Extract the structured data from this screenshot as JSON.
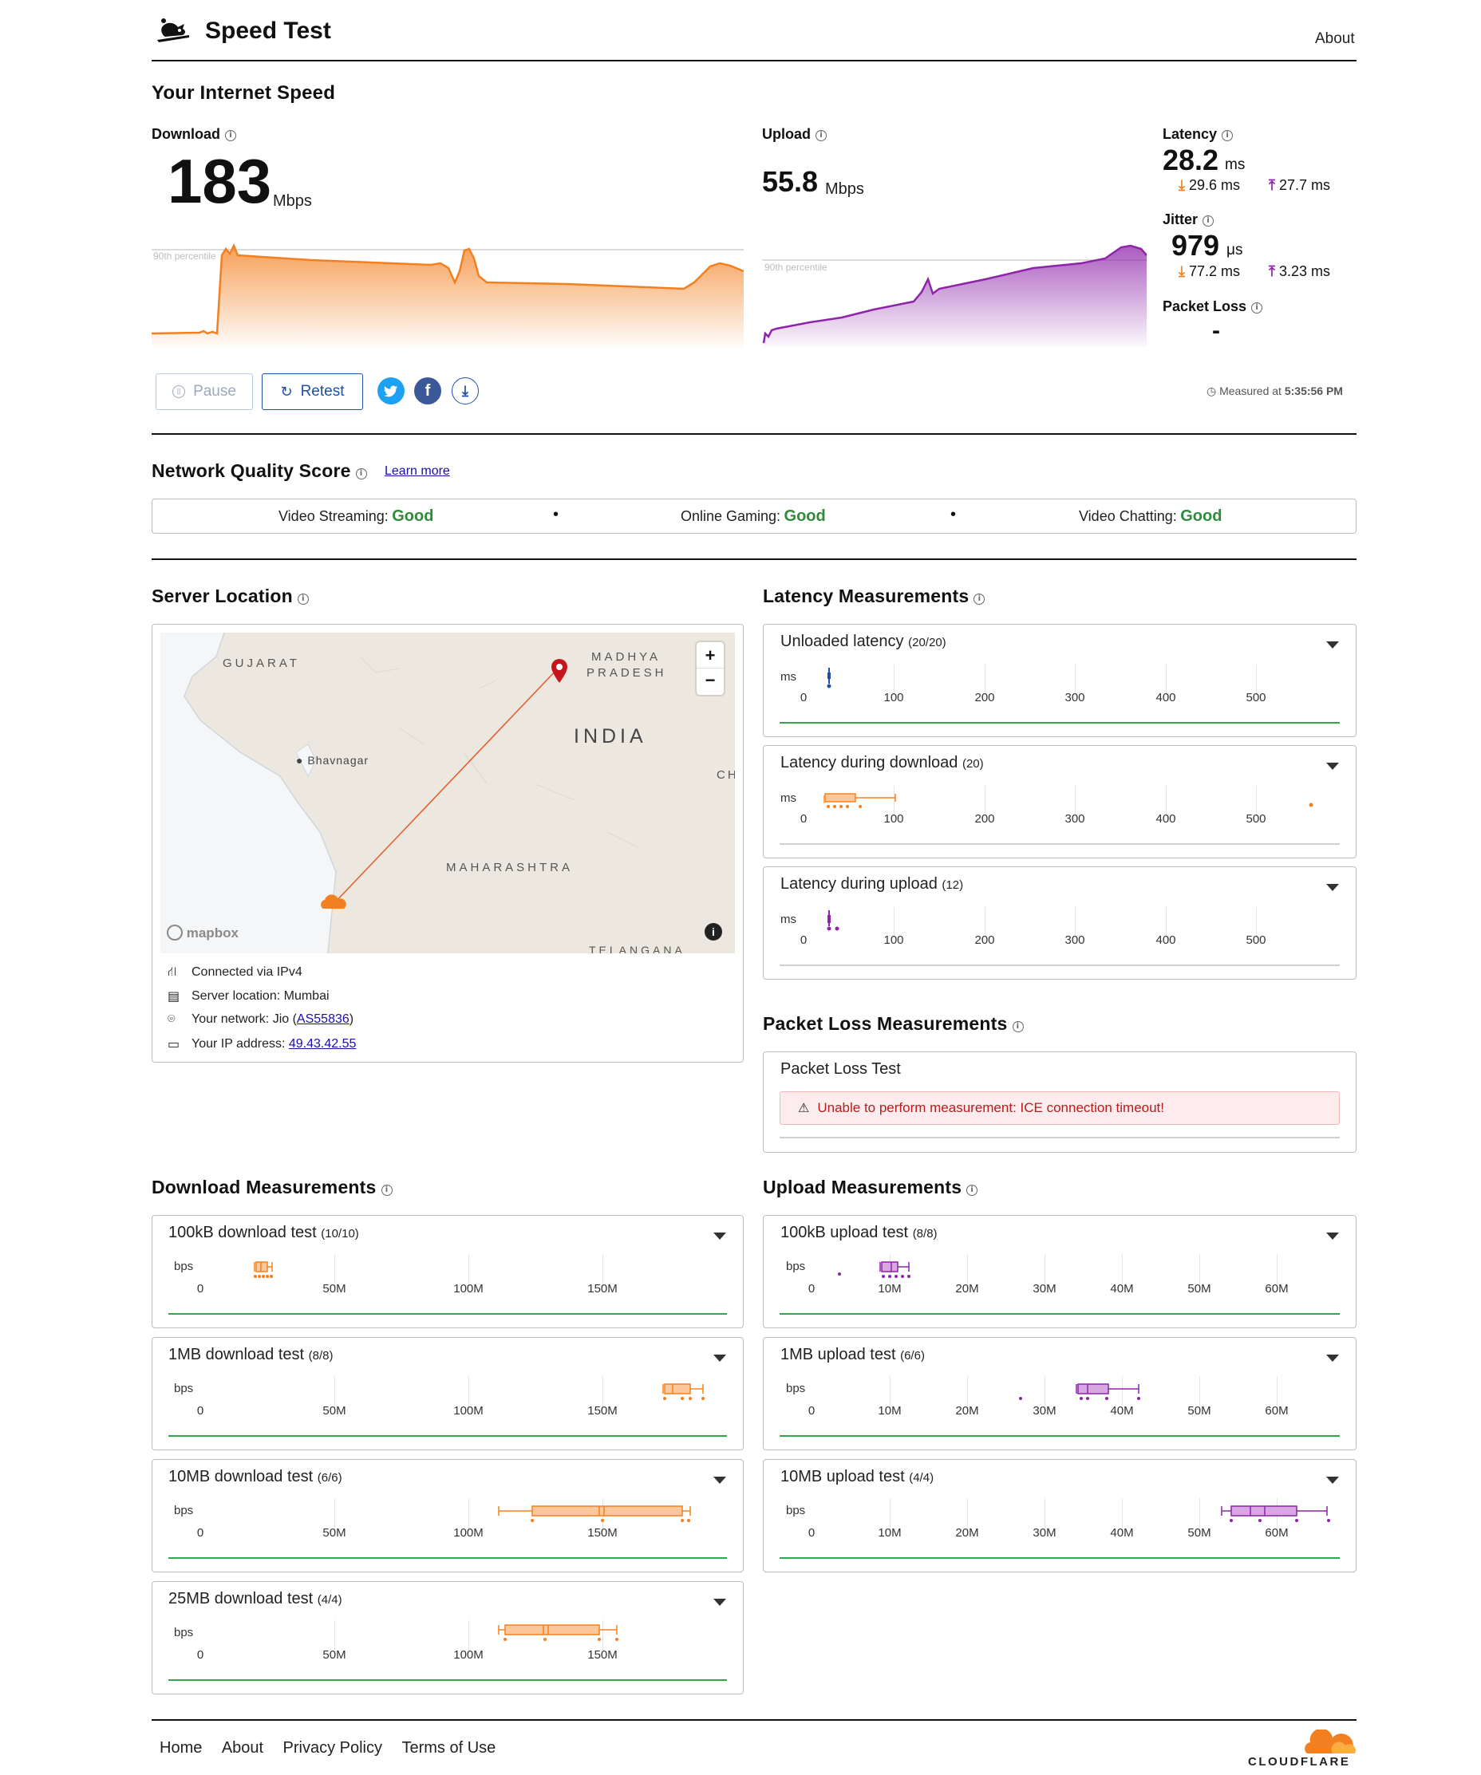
{
  "header": {
    "title": "Speed Test",
    "about": "About"
  },
  "speed": {
    "heading": "Your Internet Speed",
    "download": {
      "label": "Download",
      "value": "183",
      "unit": "Mbps",
      "percentile_label": "90th percentile"
    },
    "upload": {
      "label": "Upload",
      "value": "55.8",
      "unit": "Mbps",
      "percentile_label": "90th percentile"
    },
    "latency": {
      "label": "Latency",
      "value": "28.2",
      "unit": "ms",
      "down": "29.6 ms",
      "up": "27.7 ms"
    },
    "jitter": {
      "label": "Jitter",
      "value": "979",
      "unit": "μs",
      "down": "77.2 ms",
      "up": "3.23 ms"
    },
    "packet_loss": {
      "label": "Packet Loss",
      "value": "-"
    },
    "buttons": {
      "pause": "Pause",
      "retest": "Retest"
    },
    "measured_label": "Measured at",
    "measured_time": "5:35:56 PM"
  },
  "quality": {
    "heading": "Network Quality Score",
    "learn_more": "Learn more",
    "items": [
      {
        "label": "Video Streaming:",
        "value": "Good"
      },
      {
        "label": "Online Gaming:",
        "value": "Good"
      },
      {
        "label": "Video Chatting:",
        "value": "Good"
      }
    ]
  },
  "server": {
    "heading": "Server Location",
    "map_labels": {
      "gujarat": "GUJARAT",
      "madhya": "MADHYA",
      "pradesh": "PRADESH",
      "india": "INDIA",
      "bhavnagar": "Bhavnagar",
      "maharashtra": "MAHARASHTRA",
      "telangana": "TELANGANA",
      "ch": "CH",
      "mapbox": "mapbox",
      "zoom_in": "+",
      "zoom_out": "−"
    },
    "connected": "Connected via IPv4",
    "location": "Server location: Mumbai",
    "network_prefix": "Your network: Jio (",
    "network_as": "AS55836",
    "network_suffix": ")",
    "ip_prefix": "Your IP address: ",
    "ip": "49.43.42.55"
  },
  "latency_measurements": {
    "heading": "Latency Measurements",
    "unit": "ms",
    "ticks": [
      "0",
      "100",
      "200",
      "300",
      "400",
      "500"
    ],
    "cards": [
      {
        "title": "Unloaded latency",
        "count": "(20/20)"
      },
      {
        "title": "Latency during download",
        "count": "(20)"
      },
      {
        "title": "Latency during upload",
        "count": "(12)"
      }
    ]
  },
  "packet_loss_measurements": {
    "heading": "Packet Loss Measurements",
    "card_title": "Packet Loss Test",
    "error": "Unable to perform measurement: ICE connection timeout!"
  },
  "download_measurements": {
    "heading": "Download Measurements",
    "unit": "bps",
    "ticks": [
      "0",
      "50M",
      "100M",
      "150M"
    ],
    "cards": [
      {
        "title": "100kB download test",
        "count": "(10/10)"
      },
      {
        "title": "1MB download test",
        "count": "(8/8)"
      },
      {
        "title": "10MB download test",
        "count": "(6/6)"
      },
      {
        "title": "25MB download test",
        "count": "(4/4)"
      }
    ]
  },
  "upload_measurements": {
    "heading": "Upload Measurements",
    "unit": "bps",
    "ticks": [
      "0",
      "10M",
      "20M",
      "30M",
      "40M",
      "50M",
      "60M"
    ],
    "cards": [
      {
        "title": "100kB upload test",
        "count": "(8/8)"
      },
      {
        "title": "1MB upload test",
        "count": "(6/6)"
      },
      {
        "title": "10MB upload test",
        "count": "(4/4)"
      }
    ]
  },
  "footer": {
    "links": [
      "Home",
      "About",
      "Privacy Policy",
      "Terms of Use"
    ],
    "brand": "CLOUDFLARE"
  },
  "colors": {
    "download": "#f38020",
    "upload": "#8e24aa",
    "latency": "#1d4fa8",
    "good": "#2e8b3a"
  }
}
